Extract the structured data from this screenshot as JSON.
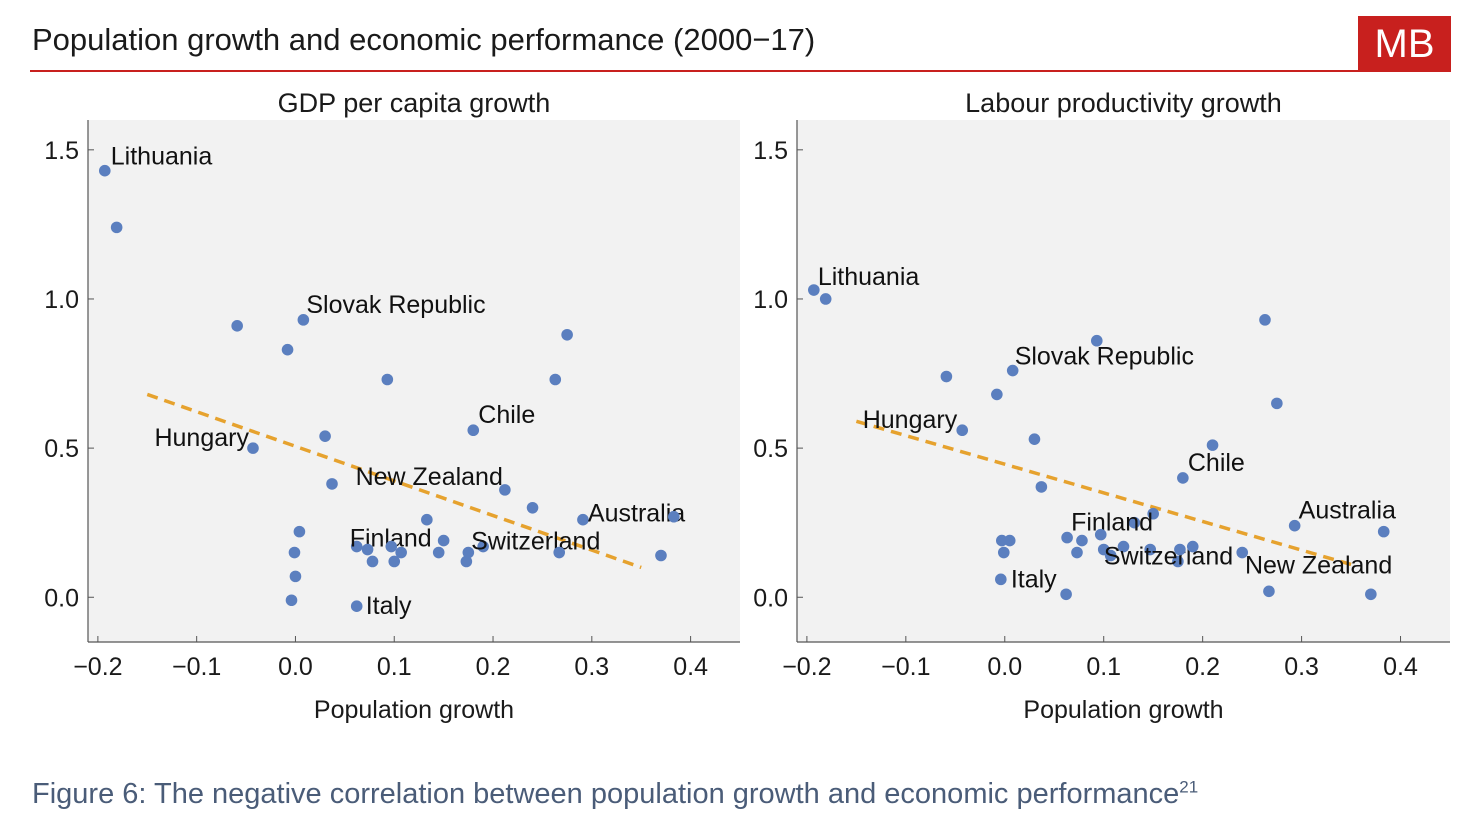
{
  "header": {
    "title": "Population growth and economic performance (2000−17)",
    "brand": "MB"
  },
  "caption": {
    "text": "Figure 6: The negative correlation between population growth and economic performance",
    "footnote": "21"
  },
  "colors": {
    "accent": "#c8201e",
    "point": "#5b7fbf",
    "trend": "#e6a22e",
    "plot_bg": "#f2f2f2",
    "caption": "#4a5c78"
  },
  "chart_data": [
    {
      "type": "scatter",
      "title": "GDP per capita growth",
      "xlabel": "Population growth",
      "ylabel": "",
      "xlim": [
        -0.21,
        0.45
      ],
      "ylim": [
        -0.15,
        1.6
      ],
      "xticks": [
        -0.2,
        -0.1,
        0.0,
        0.1,
        0.2,
        0.3,
        0.4
      ],
      "xtick_labels": [
        "−0.2",
        "−0.1",
        "0.0",
        "0.1",
        "0.2",
        "0.3",
        "0.4"
      ],
      "yticks": [
        0.0,
        0.5,
        1.0,
        1.5
      ],
      "ytick_labels": [
        "0.0",
        "0.5",
        "1.0",
        "1.5"
      ],
      "grid": false,
      "points": [
        {
          "x": -0.193,
          "y": 1.43,
          "label": "Lithuania"
        },
        {
          "x": -0.181,
          "y": 1.24,
          "label": ""
        },
        {
          "x": -0.059,
          "y": 0.91,
          "label": ""
        },
        {
          "x": -0.008,
          "y": 0.83,
          "label": ""
        },
        {
          "x": 0.008,
          "y": 0.93,
          "label": "Slovak Republic"
        },
        {
          "x": 0.093,
          "y": 0.73,
          "label": ""
        },
        {
          "x": 0.263,
          "y": 0.73,
          "label": ""
        },
        {
          "x": 0.275,
          "y": 0.88,
          "label": ""
        },
        {
          "x": -0.043,
          "y": 0.5,
          "label": "Hungary"
        },
        {
          "x": 0.03,
          "y": 0.54,
          "label": ""
        },
        {
          "x": 0.18,
          "y": 0.56,
          "label": "Chile"
        },
        {
          "x": 0.037,
          "y": 0.38,
          "label": ""
        },
        {
          "x": 0.212,
          "y": 0.36,
          "label": "New Zealand"
        },
        {
          "x": 0.24,
          "y": 0.3,
          "label": ""
        },
        {
          "x": 0.133,
          "y": 0.26,
          "label": ""
        },
        {
          "x": 0.291,
          "y": 0.26,
          "label": "Australia"
        },
        {
          "x": 0.383,
          "y": 0.27,
          "label": ""
        },
        {
          "x": 0.004,
          "y": 0.22,
          "label": ""
        },
        {
          "x": -0.001,
          "y": 0.15,
          "label": ""
        },
        {
          "x": 0.0,
          "y": 0.07,
          "label": ""
        },
        {
          "x": -0.004,
          "y": -0.01,
          "label": ""
        },
        {
          "x": 0.062,
          "y": 0.17,
          "label": "Finland"
        },
        {
          "x": 0.073,
          "y": 0.16,
          "label": ""
        },
        {
          "x": 0.078,
          "y": 0.12,
          "label": ""
        },
        {
          "x": 0.097,
          "y": 0.17,
          "label": ""
        },
        {
          "x": 0.1,
          "y": 0.12,
          "label": ""
        },
        {
          "x": 0.107,
          "y": 0.15,
          "label": ""
        },
        {
          "x": 0.145,
          "y": 0.15,
          "label": ""
        },
        {
          "x": 0.15,
          "y": 0.19,
          "label": ""
        },
        {
          "x": 0.173,
          "y": 0.12,
          "label": ""
        },
        {
          "x": 0.175,
          "y": 0.15,
          "label": ""
        },
        {
          "x": 0.19,
          "y": 0.17,
          "label": "Switzerland"
        },
        {
          "x": 0.267,
          "y": 0.15,
          "label": ""
        },
        {
          "x": 0.37,
          "y": 0.14,
          "label": ""
        },
        {
          "x": 0.062,
          "y": -0.03,
          "label": "Italy"
        }
      ],
      "trendline": {
        "x": [
          -0.15,
          0.35
        ],
        "y": [
          0.68,
          0.1
        ]
      }
    },
    {
      "type": "scatter",
      "title": "Labour productivity growth",
      "xlabel": "Population growth",
      "ylabel": "",
      "xlim": [
        -0.21,
        0.45
      ],
      "ylim": [
        -0.15,
        1.6
      ],
      "xticks": [
        -0.2,
        -0.1,
        0.0,
        0.1,
        0.2,
        0.3,
        0.4
      ],
      "xtick_labels": [
        "−0.2",
        "−0.1",
        "0.0",
        "0.1",
        "0.2",
        "0.3",
        "0.4"
      ],
      "yticks": [
        0.0,
        0.5,
        1.0,
        1.5
      ],
      "ytick_labels": [
        "0.0",
        "0.5",
        "1.0",
        "1.5"
      ],
      "grid": false,
      "points": [
        {
          "x": -0.193,
          "y": 1.03,
          "label": "Lithuania"
        },
        {
          "x": -0.181,
          "y": 1.0,
          "label": ""
        },
        {
          "x": -0.059,
          "y": 0.74,
          "label": ""
        },
        {
          "x": -0.008,
          "y": 0.68,
          "label": ""
        },
        {
          "x": 0.008,
          "y": 0.76,
          "label": "Slovak Republic"
        },
        {
          "x": 0.093,
          "y": 0.86,
          "label": ""
        },
        {
          "x": 0.263,
          "y": 0.93,
          "label": ""
        },
        {
          "x": 0.275,
          "y": 0.65,
          "label": ""
        },
        {
          "x": -0.043,
          "y": 0.56,
          "label": "Hungary"
        },
        {
          "x": 0.03,
          "y": 0.53,
          "label": ""
        },
        {
          "x": 0.18,
          "y": 0.4,
          "label": "Chile"
        },
        {
          "x": 0.21,
          "y": 0.51,
          "label": ""
        },
        {
          "x": 0.037,
          "y": 0.37,
          "label": ""
        },
        {
          "x": 0.131,
          "y": 0.25,
          "label": ""
        },
        {
          "x": 0.15,
          "y": 0.28,
          "label": ""
        },
        {
          "x": 0.293,
          "y": 0.24,
          "label": "Australia"
        },
        {
          "x": 0.383,
          "y": 0.22,
          "label": ""
        },
        {
          "x": 0.063,
          "y": 0.2,
          "label": "Finland"
        },
        {
          "x": 0.078,
          "y": 0.19,
          "label": ""
        },
        {
          "x": 0.097,
          "y": 0.21,
          "label": ""
        },
        {
          "x": 0.073,
          "y": 0.15,
          "label": ""
        },
        {
          "x": 0.1,
          "y": 0.16,
          "label": ""
        },
        {
          "x": 0.107,
          "y": 0.14,
          "label": ""
        },
        {
          "x": 0.12,
          "y": 0.17,
          "label": ""
        },
        {
          "x": 0.147,
          "y": 0.16,
          "label": ""
        },
        {
          "x": 0.175,
          "y": 0.12,
          "label": "Switzerland"
        },
        {
          "x": 0.177,
          "y": 0.16,
          "label": ""
        },
        {
          "x": 0.19,
          "y": 0.17,
          "label": ""
        },
        {
          "x": 0.24,
          "y": 0.15,
          "label": ""
        },
        {
          "x": -0.003,
          "y": 0.19,
          "label": ""
        },
        {
          "x": 0.005,
          "y": 0.19,
          "label": ""
        },
        {
          "x": -0.001,
          "y": 0.15,
          "label": ""
        },
        {
          "x": -0.004,
          "y": 0.06,
          "label": "Italy"
        },
        {
          "x": 0.062,
          "y": 0.01,
          "label": ""
        },
        {
          "x": 0.267,
          "y": 0.02,
          "label": "New Zealand"
        },
        {
          "x": 0.37,
          "y": 0.01,
          "label": ""
        }
      ],
      "trendline": {
        "x": [
          -0.15,
          0.35
        ],
        "y": [
          0.59,
          0.11
        ]
      }
    }
  ]
}
